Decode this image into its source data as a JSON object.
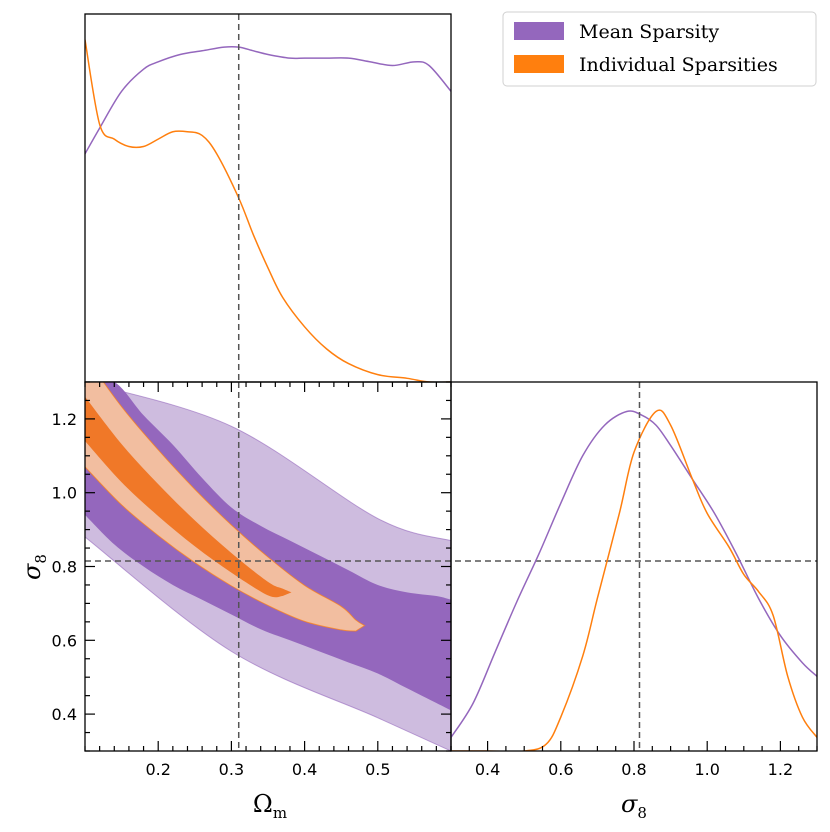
{
  "chart_data": {
    "type": "corner",
    "title": "",
    "parameters": [
      {
        "name": "Omega_m",
        "label_base": "Ω",
        "label_sub": "m",
        "range": [
          0.1,
          0.6
        ],
        "fiducial": 0.31,
        "ticks": [
          "0.2",
          "0.3",
          "0.4",
          "0.5"
        ]
      },
      {
        "name": "sigma_8",
        "label_base": "σ",
        "label_sub": "8",
        "range": [
          0.3,
          1.3
        ],
        "fiducial": 0.815,
        "ticks": [
          "0.4",
          "0.6",
          "0.8",
          "1.0",
          "1.2"
        ]
      }
    ],
    "legend": {
      "placement": "top-right",
      "items": [
        {
          "label": "Mean Sparsity",
          "color": "#9467bd"
        },
        {
          "label": "Individual Sparsities",
          "color": "#ff7f0e"
        }
      ]
    },
    "colors": {
      "mean_line": "#9467bd",
      "indiv_line": "#ff7f0e",
      "mean_inner": "#9467bd",
      "mean_outer": "#cebcdf",
      "indiv_inner": "#f07828",
      "indiv_outer": "#f2bea0",
      "fiducial_line": "#555555"
    },
    "series": [
      {
        "name": "Mean Sparsity",
        "omega_m_marginal": {
          "x": [
            0.1,
            0.12,
            0.15,
            0.18,
            0.2,
            0.23,
            0.26,
            0.29,
            0.31,
            0.33,
            0.35,
            0.38,
            0.4,
            0.43,
            0.46,
            0.49,
            0.52,
            0.55,
            0.57,
            0.6
          ],
          "density": [
            0.62,
            0.69,
            0.79,
            0.85,
            0.87,
            0.89,
            0.9,
            0.91,
            0.91,
            0.9,
            0.89,
            0.88,
            0.88,
            0.88,
            0.88,
            0.87,
            0.86,
            0.87,
            0.86,
            0.79
          ]
        },
        "sigma_8_marginal": {
          "x": [
            0.3,
            0.36,
            0.42,
            0.48,
            0.54,
            0.6,
            0.66,
            0.72,
            0.78,
            0.82,
            0.86,
            0.9,
            0.96,
            1.02,
            1.08,
            1.14,
            1.2,
            1.26,
            1.3
          ],
          "density": [
            0.04,
            0.14,
            0.29,
            0.44,
            0.58,
            0.73,
            0.87,
            0.96,
            1.0,
            0.99,
            0.96,
            0.9,
            0.8,
            0.7,
            0.58,
            0.45,
            0.34,
            0.26,
            0.22
          ]
        },
        "contour_68": {
          "omega_m": [
            0.1,
            0.14,
            0.18,
            0.22,
            0.26,
            0.3,
            0.34,
            0.38,
            0.42,
            0.46,
            0.5,
            0.54,
            0.58,
            0.6,
            0.6,
            0.58,
            0.54,
            0.5,
            0.46,
            0.42,
            0.38,
            0.34,
            0.3,
            0.26,
            0.22,
            0.18,
            0.14,
            0.1
          ],
          "sigma_8_low": [
            0.94,
            0.86,
            0.8,
            0.75,
            0.71,
            0.67,
            0.63,
            0.6,
            0.57,
            0.54,
            0.51,
            0.47,
            0.43,
            0.41
          ],
          "sigma_8_high": [
            0.71,
            0.72,
            0.73,
            0.75,
            0.79,
            0.83,
            0.87,
            0.91,
            0.96,
            1.04,
            1.13,
            1.21,
            1.3,
            1.3
          ]
        },
        "contour_95": {
          "sigma_8_low_at": {
            "0.10": 0.88,
            "0.30": 0.57,
            "0.50": 0.39,
            "0.60": 0.3
          },
          "sigma_8_high_at": {
            "0.10": 1.3,
            "0.30": 1.18,
            "0.50": 0.93,
            "0.60": 0.87
          }
        }
      },
      {
        "name": "Individual Sparsities",
        "omega_m_marginal": {
          "x": [
            0.1,
            0.12,
            0.14,
            0.16,
            0.18,
            0.2,
            0.22,
            0.24,
            0.26,
            0.28,
            0.31,
            0.33,
            0.35,
            0.37,
            0.4,
            0.43,
            0.46,
            0.5,
            0.54,
            0.57,
            0.6
          ],
          "density": [
            0.93,
            0.7,
            0.66,
            0.64,
            0.64,
            0.66,
            0.68,
            0.68,
            0.67,
            0.62,
            0.5,
            0.4,
            0.31,
            0.23,
            0.15,
            0.09,
            0.05,
            0.02,
            0.01,
            0.0,
            0.0
          ]
        },
        "sigma_8_marginal": {
          "x": [
            0.3,
            0.4,
            0.5,
            0.56,
            0.6,
            0.66,
            0.7,
            0.76,
            0.8,
            0.86,
            0.9,
            0.96,
            1.0,
            1.06,
            1.1,
            1.14,
            1.18,
            1.22,
            1.26,
            1.3
          ],
          "density": [
            0.0,
            0.0,
            0.0,
            0.02,
            0.1,
            0.28,
            0.45,
            0.7,
            0.88,
            1.0,
            0.96,
            0.8,
            0.7,
            0.6,
            0.52,
            0.47,
            0.4,
            0.22,
            0.1,
            0.04
          ]
        },
        "contour_68": {
          "omega_m": [
            0.1,
            0.15,
            0.2,
            0.25,
            0.3,
            0.35,
            0.37
          ],
          "sigma_8_center": [
            1.2,
            1.08,
            0.98,
            0.89,
            0.81,
            0.74,
            0.73
          ]
        },
        "contour_95": {
          "omega_m": [
            0.1,
            0.15,
            0.2,
            0.25,
            0.3,
            0.35,
            0.4,
            0.45,
            0.47
          ],
          "sigma_8_center": [
            1.22,
            1.1,
            1.0,
            0.91,
            0.83,
            0.76,
            0.7,
            0.66,
            0.64
          ]
        }
      }
    ]
  }
}
